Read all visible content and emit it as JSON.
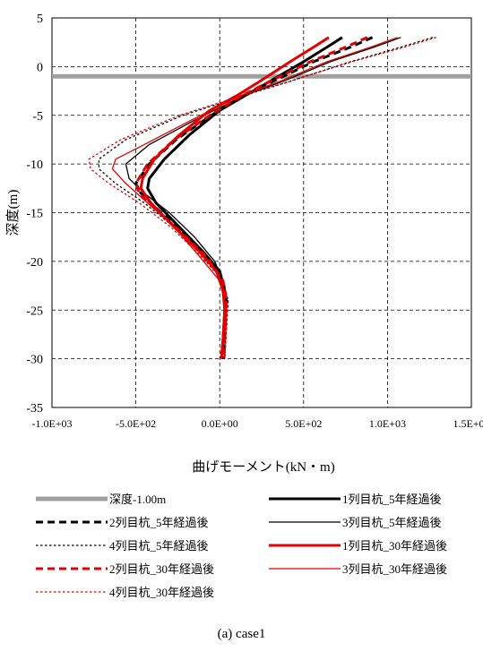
{
  "caption": "(a) case1",
  "chart_data": {
    "type": "line",
    "xlabel": "曲げモーメント(kN・m)",
    "ylabel": "深度(m)",
    "xlim": [
      -1000,
      1500
    ],
    "ylim": [
      -35,
      5
    ],
    "xticks": [
      -1000,
      -500,
      0,
      500,
      1000,
      1500
    ],
    "xtick_labels": [
      "-1.0E+03",
      "-5.0E+02",
      "0.0E+00",
      "5.0E+02",
      "1.0E+03",
      "1.5E+03"
    ],
    "yticks": [
      5,
      0,
      -5,
      -10,
      -15,
      -20,
      -25,
      -30,
      -35
    ],
    "ytick_labels": [
      "5",
      "0",
      "-5",
      "-10",
      "-15",
      "-20",
      "-25",
      "-30",
      "-35"
    ],
    "grid": true,
    "legend_position": "bottom",
    "reference_line": {
      "name": "深度-1.00m",
      "y": -1.0,
      "color": "#a0a0a0"
    },
    "series": [
      {
        "name": "1列目杭_5年経過後",
        "color": "#000000",
        "style": "solid-thick",
        "x": [
          730,
          640,
          500,
          300,
          150,
          0,
          -180,
          -330,
          -420,
          -430,
          -380,
          -240,
          -100,
          0,
          30,
          30,
          20,
          10
        ],
        "y": [
          3,
          2,
          0.5,
          -1.5,
          -3,
          -4.5,
          -7,
          -9.5,
          -11.5,
          -12.5,
          -14,
          -16.5,
          -19,
          -21,
          -23,
          -25,
          -28,
          -30
        ]
      },
      {
        "name": "2列目杭_5年経過後",
        "color": "#000000",
        "style": "dash-thick",
        "x": [
          910,
          780,
          560,
          320,
          140,
          -50,
          -260,
          -420,
          -500,
          -470,
          -380,
          -220,
          -80,
          20,
          40,
          30,
          20
        ],
        "y": [
          3,
          2,
          0.5,
          -1.5,
          -3,
          -5,
          -7.5,
          -10,
          -12,
          -13,
          -14.5,
          -17,
          -19.5,
          -22,
          -24,
          -27,
          -30
        ]
      },
      {
        "name": "3列目杭_5年経過後",
        "color": "#000000",
        "style": "solid-thin",
        "x": [
          1080,
          920,
          660,
          380,
          140,
          -150,
          -420,
          -560,
          -540,
          -450,
          -300,
          -150,
          -30,
          30,
          40,
          30
        ],
        "y": [
          3,
          2,
          0.5,
          -1.5,
          -3,
          -5.5,
          -8,
          -10,
          -11.5,
          -13,
          -15,
          -17.5,
          -20,
          -22.5,
          -25,
          -30
        ]
      },
      {
        "name": "4列目杭_5年経過後",
        "color": "#000000",
        "style": "dot-thin",
        "x": [
          1270,
          1080,
          780,
          420,
          140,
          -220,
          -560,
          -720,
          -720,
          -620,
          -450,
          -270,
          -100,
          20,
          50,
          40,
          30
        ],
        "y": [
          3,
          2,
          0.5,
          -1.5,
          -3,
          -5,
          -7.5,
          -9.5,
          -10.5,
          -12,
          -14,
          -16.5,
          -19.5,
          -22,
          -24,
          -27,
          -30
        ]
      },
      {
        "name": "1列目杭_30年経過後",
        "color": "#e30000",
        "style": "solid-thick",
        "x": [
          650,
          560,
          420,
          240,
          100,
          -60,
          -240,
          -390,
          -460,
          -470,
          -410,
          -270,
          -120,
          -20,
          20,
          30,
          20,
          10
        ],
        "y": [
          3,
          2,
          0.5,
          -1.5,
          -3,
          -4.5,
          -7,
          -9.5,
          -11.5,
          -12.5,
          -14,
          -16.5,
          -19,
          -21,
          -23,
          -25,
          -28,
          -30
        ]
      },
      {
        "name": "2列目杭_30年経過後",
        "color": "#e30000",
        "style": "dash-thick",
        "x": [
          880,
          750,
          540,
          300,
          130,
          -60,
          -270,
          -430,
          -500,
          -480,
          -390,
          -230,
          -80,
          20,
          40,
          30,
          20
        ],
        "y": [
          3,
          2,
          0.5,
          -1.5,
          -3,
          -5,
          -7.5,
          -10,
          -12,
          -13,
          -14.5,
          -17,
          -19.5,
          -22,
          -24,
          -27,
          -30
        ]
      },
      {
        "name": "3列目杭_30年経過後",
        "color": "#e30000",
        "style": "solid-thin",
        "x": [
          1060,
          900,
          640,
          360,
          120,
          -170,
          -450,
          -620,
          -640,
          -560,
          -430,
          -270,
          -120,
          0,
          40,
          30
        ],
        "y": [
          3,
          2,
          0.5,
          -1.5,
          -3,
          -5.5,
          -8,
          -9.5,
          -10.5,
          -12,
          -14,
          -16.5,
          -19.5,
          -22,
          -25,
          -30
        ]
      },
      {
        "name": "4列目杭_30年経過後",
        "color": "#e30000",
        "style": "dot-thin",
        "x": [
          1290,
          1100,
          790,
          420,
          130,
          -240,
          -590,
          -780,
          -770,
          -660,
          -480,
          -290,
          -110,
          20,
          50,
          40,
          30
        ],
        "y": [
          3,
          2,
          0.5,
          -1.5,
          -3,
          -5,
          -7.5,
          -9.5,
          -10.5,
          -12,
          -14,
          -16.5,
          -19.5,
          -22,
          -24,
          -27,
          -30
        ]
      }
    ],
    "legend_order": [
      "深度-1.00m",
      "1列目杭_5年経過後",
      "2列目杭_5年経過後",
      "3列目杭_5年経過後",
      "4列目杭_5年経過後",
      "1列目杭_30年経過後",
      "2列目杭_30年経過後",
      "3列目杭_30年経過後",
      "4列目杭_30年経過後"
    ]
  }
}
